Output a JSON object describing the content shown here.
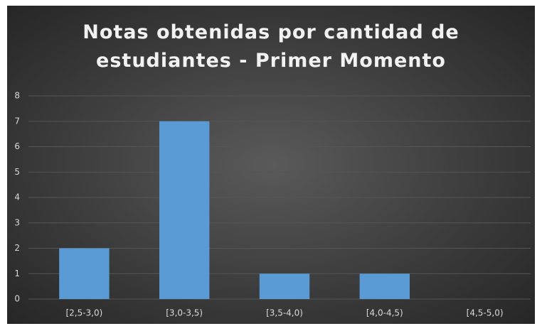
{
  "chart_data": {
    "type": "bar",
    "title": "Notas obtenidas por cantidad de estudiantes - Primer Momento",
    "categories": [
      "[2,5-3,0)",
      "[3,0-3,5)",
      "[3,5-4,0)",
      "[4,0-4,5)",
      "[4,5-5,0)"
    ],
    "values": [
      2,
      7,
      1,
      1,
      0
    ],
    "color": "#5b9bd5",
    "ylim": [
      0,
      8
    ],
    "yticks": [
      0,
      1,
      2,
      3,
      4,
      5,
      6,
      7,
      8
    ],
    "grid": true
  }
}
